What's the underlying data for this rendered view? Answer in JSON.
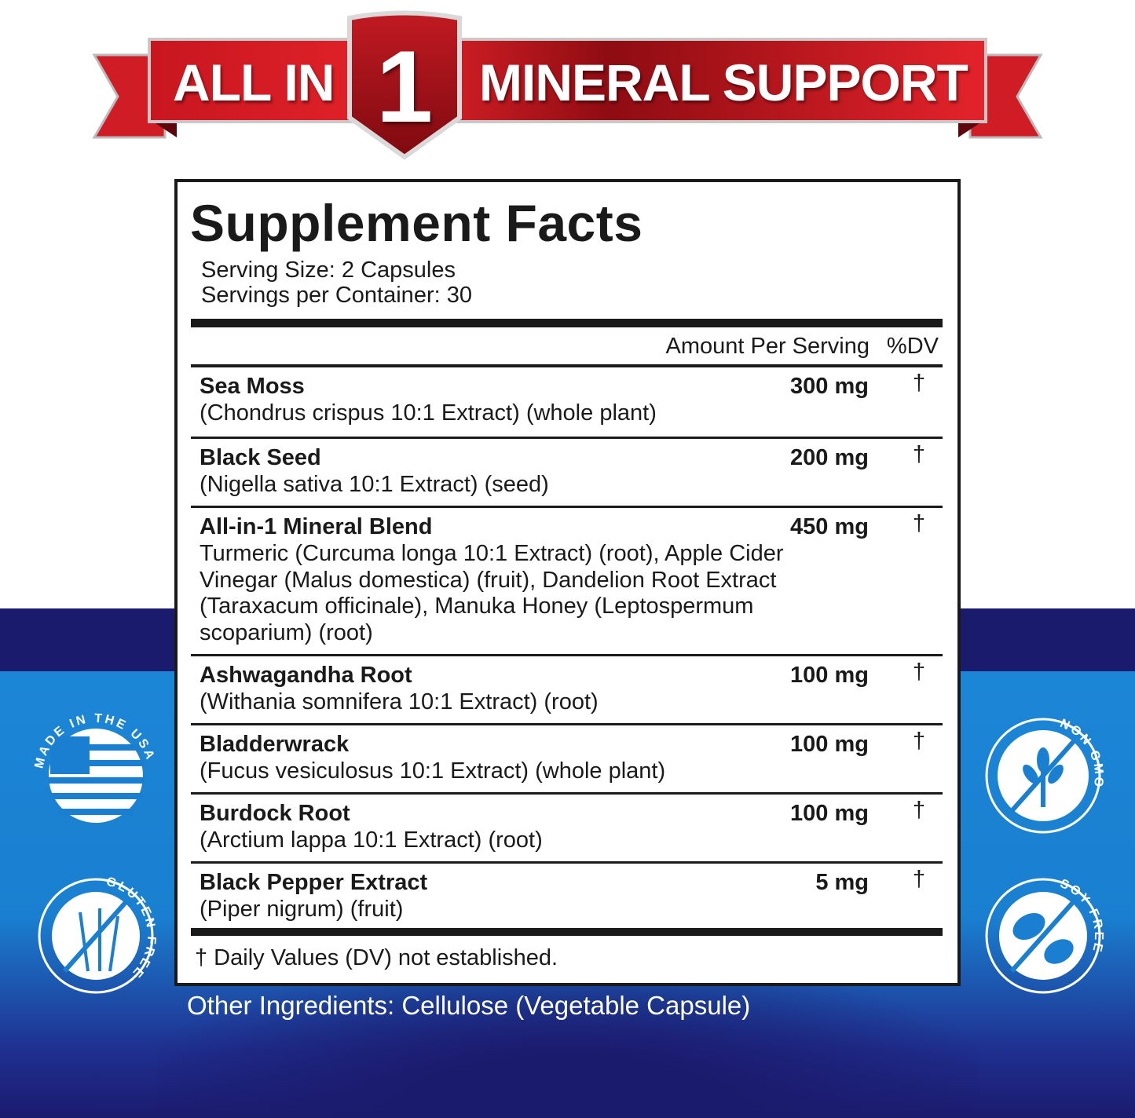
{
  "banner": {
    "left": "ALL IN",
    "number": "1",
    "right": "MINERAL SUPPORT"
  },
  "facts": {
    "title": "Supplement Facts",
    "serving_size": "Serving Size: 2 Capsules",
    "servings_per_container": "Servings per Container: 30",
    "header_amount": "Amount Per Serving",
    "header_dv": "%DV",
    "rows": [
      {
        "name": "Sea Moss",
        "desc": "(Chondrus crispus 10:1 Extract) (whole plant)",
        "amount": "300 mg",
        "dv": "†"
      },
      {
        "name": "Black Seed",
        "desc": "(Nigella sativa 10:1 Extract) (seed)",
        "amount": "200 mg",
        "dv": "†"
      },
      {
        "name": "All-in-1 Mineral Blend",
        "desc": "Turmeric (Curcuma longa 10:1 Extract) (root), Apple Cider Vinegar (Malus domestica) (fruit), Dandelion Root Extract (Taraxacum officinale), Manuka Honey (Leptospermum scoparium) (root)",
        "amount": "450 mg",
        "dv": "†"
      },
      {
        "name": "Ashwagandha Root",
        "desc": "(Withania somnifera 10:1 Extract) (root)",
        "amount": "100 mg",
        "dv": "†"
      },
      {
        "name": "Bladderwrack",
        "desc": "(Fucus vesiculosus 10:1 Extract) (whole plant)",
        "amount": "100 mg",
        "dv": "†"
      },
      {
        "name": "Burdock Root",
        "desc": "(Arctium lappa 10:1 Extract) (root)",
        "amount": "100 mg",
        "dv": "†"
      },
      {
        "name": "Black Pepper Extract",
        "desc": "(Piper nigrum) (fruit)",
        "amount": "5 mg",
        "dv": "†"
      }
    ],
    "footnote": "† Daily Values (DV) not established."
  },
  "other_ingredients": "Other Ingredients: Cellulose (Vegetable Capsule)",
  "badges": [
    {
      "label": "MADE IN THE USA",
      "icon": "us-flag-icon"
    },
    {
      "label": "NON GMO",
      "icon": "no-plant-icon"
    },
    {
      "label": "GLUTEN FREE",
      "icon": "no-wheat-icon"
    },
    {
      "label": "SOY FREE",
      "icon": "no-soy-icon"
    }
  ],
  "colors": {
    "banner_red": "#d8202a",
    "navy": "#1b1b6e",
    "blue": "#1a7fd0",
    "ink": "#1a1a1a"
  }
}
